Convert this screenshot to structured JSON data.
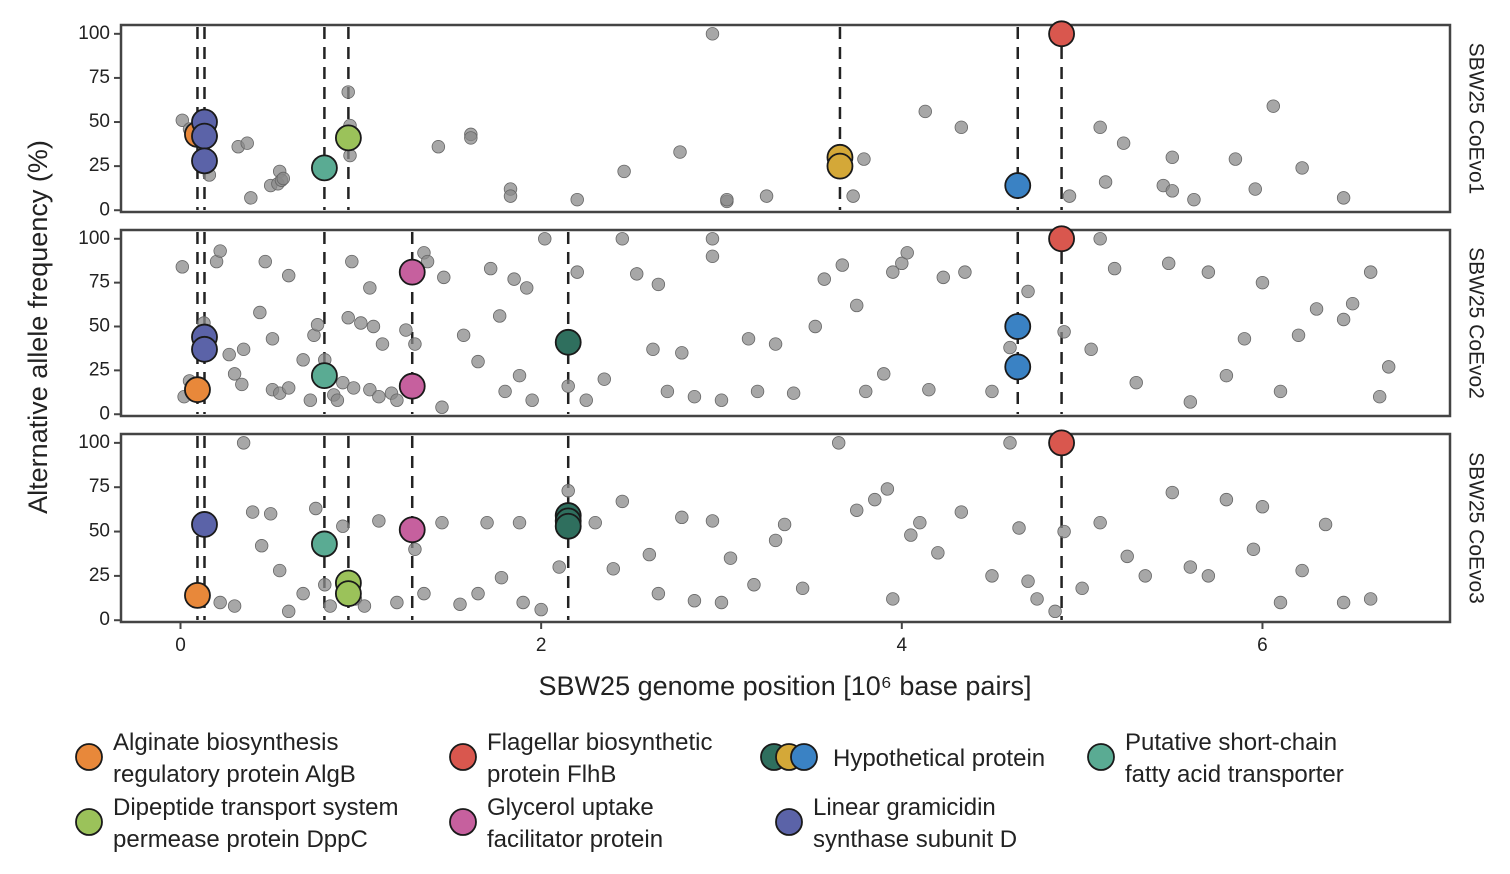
{
  "x_label": "SBW25 genome position [10⁶ base pairs]",
  "y_label": "Alternative allele frequency (%)",
  "legend": [
    {
      "label": [
        "Alginate biosynthesis",
        "regulatory protein AlgB"
      ],
      "colors": [
        "#e8883a"
      ]
    },
    {
      "label": [
        "Dipeptide transport system",
        "permease protein DppC"
      ],
      "colors": [
        "#9bc25a"
      ]
    },
    {
      "label": [
        "Flagellar biosynthetic",
        "protein FlhB"
      ],
      "colors": [
        "#d9574e"
      ]
    },
    {
      "label": [
        "Glycerol uptake",
        "facilitator protein"
      ],
      "colors": [
        "#c6609e"
      ]
    },
    {
      "label": [
        "Hypothetical protein"
      ],
      "colors": [
        "#2f6f5e",
        "#d4a838",
        "#3a82c4"
      ]
    },
    {
      "label": [
        "Linear gramicidin",
        "synthase subunit D"
      ],
      "colors": [
        "#5b63a8"
      ]
    },
    {
      "label": [
        "Putative short-chain",
        "fatty acid transporter"
      ],
      "colors": [
        "#5aab93"
      ]
    }
  ],
  "chart_data": [
    {
      "type": "scatter",
      "facet": "SBW25 CoEvo1",
      "xlim": [
        -0.33,
        7.04
      ],
      "ylim": [
        -1,
        105
      ],
      "yticks": [
        0,
        25,
        50,
        75,
        100
      ],
      "vlines": [
        0.094,
        0.133,
        0.798,
        0.931,
        3.657,
        4.643,
        4.886
      ],
      "series": [
        {
          "color": "#8a8a8a",
          "x": [
            0.01,
            0.05,
            0.16,
            0.17,
            0.32,
            0.37,
            0.39,
            0.5,
            0.54,
            0.55,
            0.56,
            0.57,
            0.93,
            0.94,
            0.94,
            1.43,
            1.61,
            1.61,
            1.83,
            1.83,
            2.2,
            2.46,
            2.77,
            2.95,
            3.03,
            3.03,
            3.25,
            3.73,
            3.79,
            4.13,
            4.33,
            4.93,
            5.1,
            5.13,
            5.23,
            5.45,
            5.5,
            5.5,
            5.62,
            5.85,
            5.96,
            6.06,
            6.22,
            6.45
          ],
          "values": [
            51,
            46,
            20,
            42,
            36,
            38,
            7,
            14,
            15,
            22,
            17,
            18,
            67,
            48,
            31,
            36,
            43,
            41,
            12,
            8,
            6,
            22,
            33,
            100,
            5,
            6,
            8,
            8,
            29,
            56,
            47,
            8,
            47,
            16,
            38,
            14,
            11,
            30,
            6,
            29,
            12,
            59,
            24,
            7
          ]
        },
        {
          "color": "#e8883a",
          "x": [
            0.094
          ],
          "values": [
            43
          ]
        },
        {
          "color": "#5b63a8",
          "x": [
            0.133,
            0.133,
            0.133
          ],
          "values": [
            50,
            42,
            28
          ]
        },
        {
          "color": "#5aab93",
          "x": [
            0.798
          ],
          "values": [
            24
          ]
        },
        {
          "color": "#9bc25a",
          "x": [
            0.931
          ],
          "values": [
            41
          ]
        },
        {
          "color": "#d4a838",
          "x": [
            3.657,
            3.657
          ],
          "values": [
            30,
            25
          ]
        },
        {
          "color": "#3a82c4",
          "x": [
            4.643
          ],
          "values": [
            14
          ]
        },
        {
          "color": "#d9574e",
          "x": [
            4.886
          ],
          "values": [
            100
          ]
        }
      ]
    },
    {
      "type": "scatter",
      "facet": "SBW25 CoEvo2",
      "xlim": [
        -0.33,
        7.04
      ],
      "ylim": [
        -1,
        105
      ],
      "yticks": [
        0,
        25,
        50,
        75,
        100
      ],
      "vlines": [
        0.094,
        0.133,
        0.798,
        1.285,
        2.15,
        4.643,
        4.886
      ],
      "series": [
        {
          "color": "#8a8a8a",
          "x": [
            0.01,
            0.02,
            0.05,
            0.13,
            0.2,
            0.22,
            0.27,
            0.3,
            0.35,
            0.34,
            0.44,
            0.47,
            0.51,
            0.51,
            0.55,
            0.6,
            0.6,
            0.68,
            0.72,
            0.74,
            0.76,
            0.8,
            0.85,
            0.87,
            0.9,
            0.93,
            0.95,
            0.96,
            1.0,
            1.05,
            1.07,
            1.05,
            1.1,
            1.12,
            1.17,
            1.2,
            1.25,
            1.3,
            1.35,
            1.37,
            1.45,
            1.46,
            1.57,
            1.65,
            1.72,
            1.77,
            1.8,
            1.85,
            1.88,
            1.92,
            1.95,
            2.02,
            2.15,
            2.2,
            2.25,
            2.35,
            2.45,
            2.53,
            2.62,
            2.65,
            2.7,
            2.78,
            2.85,
            2.95,
            2.95,
            3.0,
            3.15,
            3.2,
            3.3,
            3.4,
            3.52,
            3.57,
            3.67,
            3.75,
            3.8,
            3.9,
            3.95,
            4.0,
            4.03,
            4.15,
            4.23,
            4.35,
            4.5,
            4.6,
            4.7,
            4.9,
            5.05,
            5.1,
            5.18,
            5.3,
            5.48,
            5.6,
            5.7,
            5.8,
            5.9,
            6.0,
            6.1,
            6.2,
            6.3,
            6.45,
            6.5,
            6.6,
            6.7,
            6.65
          ],
          "values": [
            84,
            10,
            19,
            52,
            87,
            93,
            34,
            23,
            37,
            17,
            58,
            87,
            43,
            14,
            12,
            79,
            15,
            31,
            8,
            45,
            51,
            31,
            11,
            8,
            18,
            55,
            87,
            15,
            52,
            72,
            50,
            14,
            10,
            40,
            12,
            8,
            48,
            40,
            92,
            87,
            4,
            78,
            45,
            30,
            83,
            56,
            13,
            77,
            22,
            72,
            8,
            100,
            16,
            81,
            8,
            20,
            100,
            80,
            37,
            74,
            13,
            35,
            10,
            100,
            90,
            8,
            43,
            13,
            40,
            12,
            50,
            77,
            85,
            62,
            13,
            23,
            81,
            86,
            92,
            14,
            78,
            81,
            13,
            38,
            70,
            47,
            37,
            100,
            83,
            18,
            86,
            7,
            81,
            22,
            43,
            75,
            13,
            45,
            60,
            54,
            63,
            81,
            27,
            10
          ]
        },
        {
          "color": "#e8883a",
          "x": [
            0.094
          ],
          "values": [
            14
          ]
        },
        {
          "color": "#5b63a8",
          "x": [
            0.133,
            0.133
          ],
          "values": [
            44,
            37
          ]
        },
        {
          "color": "#5aab93",
          "x": [
            0.798
          ],
          "values": [
            22
          ]
        },
        {
          "color": "#c6609e",
          "x": [
            1.285,
            1.285
          ],
          "values": [
            81,
            16
          ]
        },
        {
          "color": "#2f6f5e",
          "x": [
            2.15
          ],
          "values": [
            41
          ]
        },
        {
          "color": "#3a82c4",
          "x": [
            4.643,
            4.643
          ],
          "values": [
            50,
            27
          ]
        },
        {
          "color": "#d9574e",
          "x": [
            4.886
          ],
          "values": [
            100
          ]
        }
      ]
    },
    {
      "type": "scatter",
      "facet": "SBW25 CoEvo3",
      "xlim": [
        -0.33,
        7.04
      ],
      "ylim": [
        -1,
        105
      ],
      "yticks": [
        0,
        25,
        50,
        75,
        100
      ],
      "xticks": [
        0,
        2,
        4,
        6
      ],
      "vlines": [
        0.094,
        0.133,
        0.798,
        0.931,
        1.285,
        2.15,
        4.886
      ],
      "series": [
        {
          "color": "#8a8a8a",
          "x": [
            0.22,
            0.3,
            0.35,
            0.4,
            0.45,
            0.5,
            0.55,
            0.6,
            0.68,
            0.75,
            0.8,
            0.83,
            0.9,
            0.97,
            1.02,
            1.1,
            1.2,
            1.3,
            1.35,
            1.45,
            1.55,
            1.65,
            1.7,
            1.78,
            1.88,
            1.9,
            2.0,
            2.1,
            2.15,
            2.3,
            2.4,
            2.45,
            2.6,
            2.65,
            2.78,
            2.85,
            2.95,
            3.0,
            3.05,
            3.18,
            3.3,
            3.35,
            3.45,
            3.65,
            3.75,
            3.85,
            3.92,
            3.95,
            4.05,
            4.1,
            4.2,
            4.33,
            4.5,
            4.6,
            4.65,
            4.7,
            4.75,
            4.85,
            4.9,
            5.0,
            5.1,
            5.25,
            5.35,
            5.5,
            5.6,
            5.7,
            5.8,
            5.95,
            6.0,
            6.1,
            6.22,
            6.35,
            6.45,
            6.6
          ],
          "values": [
            10,
            8,
            100,
            61,
            42,
            60,
            28,
            5,
            15,
            63,
            20,
            8,
            53,
            12,
            8,
            56,
            10,
            40,
            15,
            55,
            9,
            15,
            55,
            24,
            55,
            10,
            6,
            30,
            73,
            55,
            29,
            67,
            37,
            15,
            58,
            11,
            56,
            10,
            35,
            20,
            45,
            54,
            18,
            100,
            62,
            68,
            74,
            12,
            48,
            55,
            38,
            61,
            25,
            100,
            52,
            22,
            12,
            5,
            50,
            18,
            55,
            36,
            25,
            72,
            30,
            25,
            68,
            40,
            64,
            10,
            28,
            54,
            10,
            12
          ]
        },
        {
          "color": "#e8883a",
          "x": [
            0.094
          ],
          "values": [
            14
          ]
        },
        {
          "color": "#5b63a8",
          "x": [
            0.133
          ],
          "values": [
            54
          ]
        },
        {
          "color": "#5aab93",
          "x": [
            0.798
          ],
          "values": [
            43
          ]
        },
        {
          "color": "#9bc25a",
          "x": [
            0.931,
            0.931
          ],
          "values": [
            21,
            15
          ]
        },
        {
          "color": "#c6609e",
          "x": [
            1.285
          ],
          "values": [
            51
          ]
        },
        {
          "color": "#2f6f5e",
          "x": [
            2.15,
            2.15,
            2.15
          ],
          "values": [
            59,
            56,
            53
          ]
        },
        {
          "color": "#d9574e",
          "x": [
            4.886
          ],
          "values": [
            100
          ]
        }
      ]
    }
  ]
}
